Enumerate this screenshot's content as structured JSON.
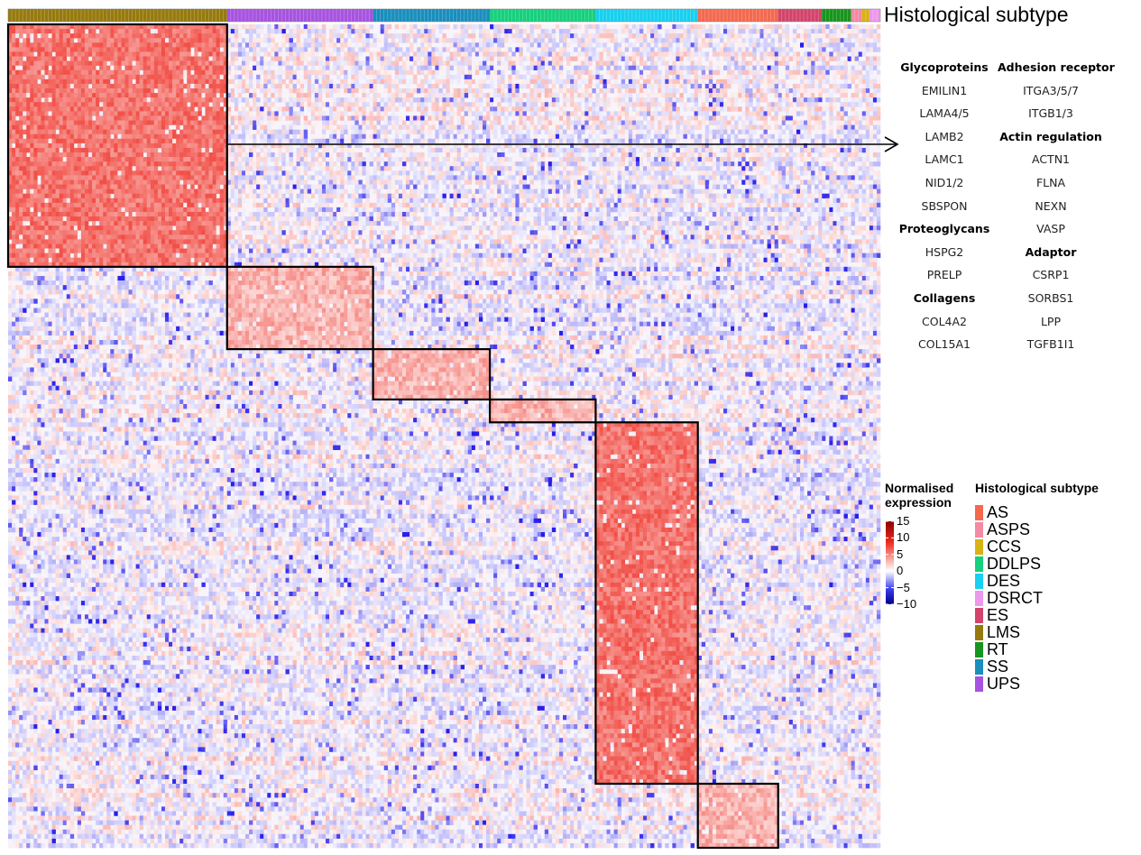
{
  "chart_data": {
    "type": "heatmap",
    "title": "",
    "annotation_title": "Histological subtype",
    "subtype_bar": [
      {
        "name": "LMS",
        "count": 60
      },
      {
        "name": "UPS",
        "count": 40
      },
      {
        "name": "SS",
        "count": 32
      },
      {
        "name": "DDLPS",
        "count": 29
      },
      {
        "name": "DES",
        "count": 28
      },
      {
        "name": "AS",
        "count": 22
      },
      {
        "name": "ES",
        "count": 12
      },
      {
        "name": "RT",
        "count": 8
      },
      {
        "name": "ASPS",
        "count": 3
      },
      {
        "name": "CCS",
        "count": 2
      },
      {
        "name": "DSRCT",
        "count": 3
      }
    ],
    "clusters": [
      {
        "subtype": "LMS",
        "row_share": 0.295,
        "intensity": "high"
      },
      {
        "subtype": "UPS",
        "row_share": 0.1,
        "intensity": "moderate"
      },
      {
        "subtype": "SS",
        "row_share": 0.06,
        "intensity": "moderate"
      },
      {
        "subtype": "DDLPS",
        "row_share": 0.03,
        "intensity": "moderate"
      },
      {
        "subtype": "DES",
        "row_share": 0.44,
        "intensity": "high"
      },
      {
        "subtype": "AS",
        "row_share": 0.075,
        "intensity": "moderate"
      }
    ],
    "color_scale": {
      "min": -10,
      "max": 15,
      "low": "#00008b",
      "mid": "#ffffff",
      "high": "#8b0000"
    },
    "highlighted_genes": {
      "left": [
        {
          "text": "Glycoproteins",
          "header": true
        },
        {
          "text": "EMILIN1"
        },
        {
          "text": "LAMA4/5"
        },
        {
          "text": "LAMB2"
        },
        {
          "text": "LAMC1"
        },
        {
          "text": "NID1/2"
        },
        {
          "text": "SBSPON"
        },
        {
          "text": "Proteoglycans",
          "header": true
        },
        {
          "text": "HSPG2"
        },
        {
          "text": "PRELP"
        },
        {
          "text": "Collagens",
          "header": true
        },
        {
          "text": "COL4A2"
        },
        {
          "text": "COL15A1"
        }
      ],
      "right": [
        {
          "text": "Adhesion receptor",
          "header": true
        },
        {
          "text": "ITGA3/5/7"
        },
        {
          "text": "ITGB1/3"
        },
        {
          "text": "Actin regulation",
          "header": true
        },
        {
          "text": "ACTN1"
        },
        {
          "text": "FLNA"
        },
        {
          "text": "NEXN"
        },
        {
          "text": "VASP"
        },
        {
          "text": "Adaptor",
          "header": true
        },
        {
          "text": "CSRP1"
        },
        {
          "text": "SORBS1"
        },
        {
          "text": "LPP"
        },
        {
          "text": "TGFB1I1"
        }
      ]
    },
    "legend_expression": {
      "title": "Normalised expression",
      "ticks": [
        "15",
        "10",
        "5",
        "0",
        "−5",
        "−10"
      ]
    },
    "legend_subtype": {
      "title": "Histological subtype",
      "entries": [
        {
          "label": "AS",
          "color": "#f4694f"
        },
        {
          "label": "ASPS",
          "color": "#f48aa4"
        },
        {
          "label": "CCS",
          "color": "#d8b314"
        },
        {
          "label": "DDLPS",
          "color": "#16d07e"
        },
        {
          "label": "DES",
          "color": "#18d0ef"
        },
        {
          "label": "DSRCT",
          "color": "#ed98ec"
        },
        {
          "label": "ES",
          "color": "#d2446c"
        },
        {
          "label": "LMS",
          "color": "#967a0e"
        },
        {
          "label": "RT",
          "color": "#18951e"
        },
        {
          "label": "SS",
          "color": "#1a8ebd"
        },
        {
          "label": "UPS",
          "color": "#a753e0"
        }
      ]
    }
  }
}
